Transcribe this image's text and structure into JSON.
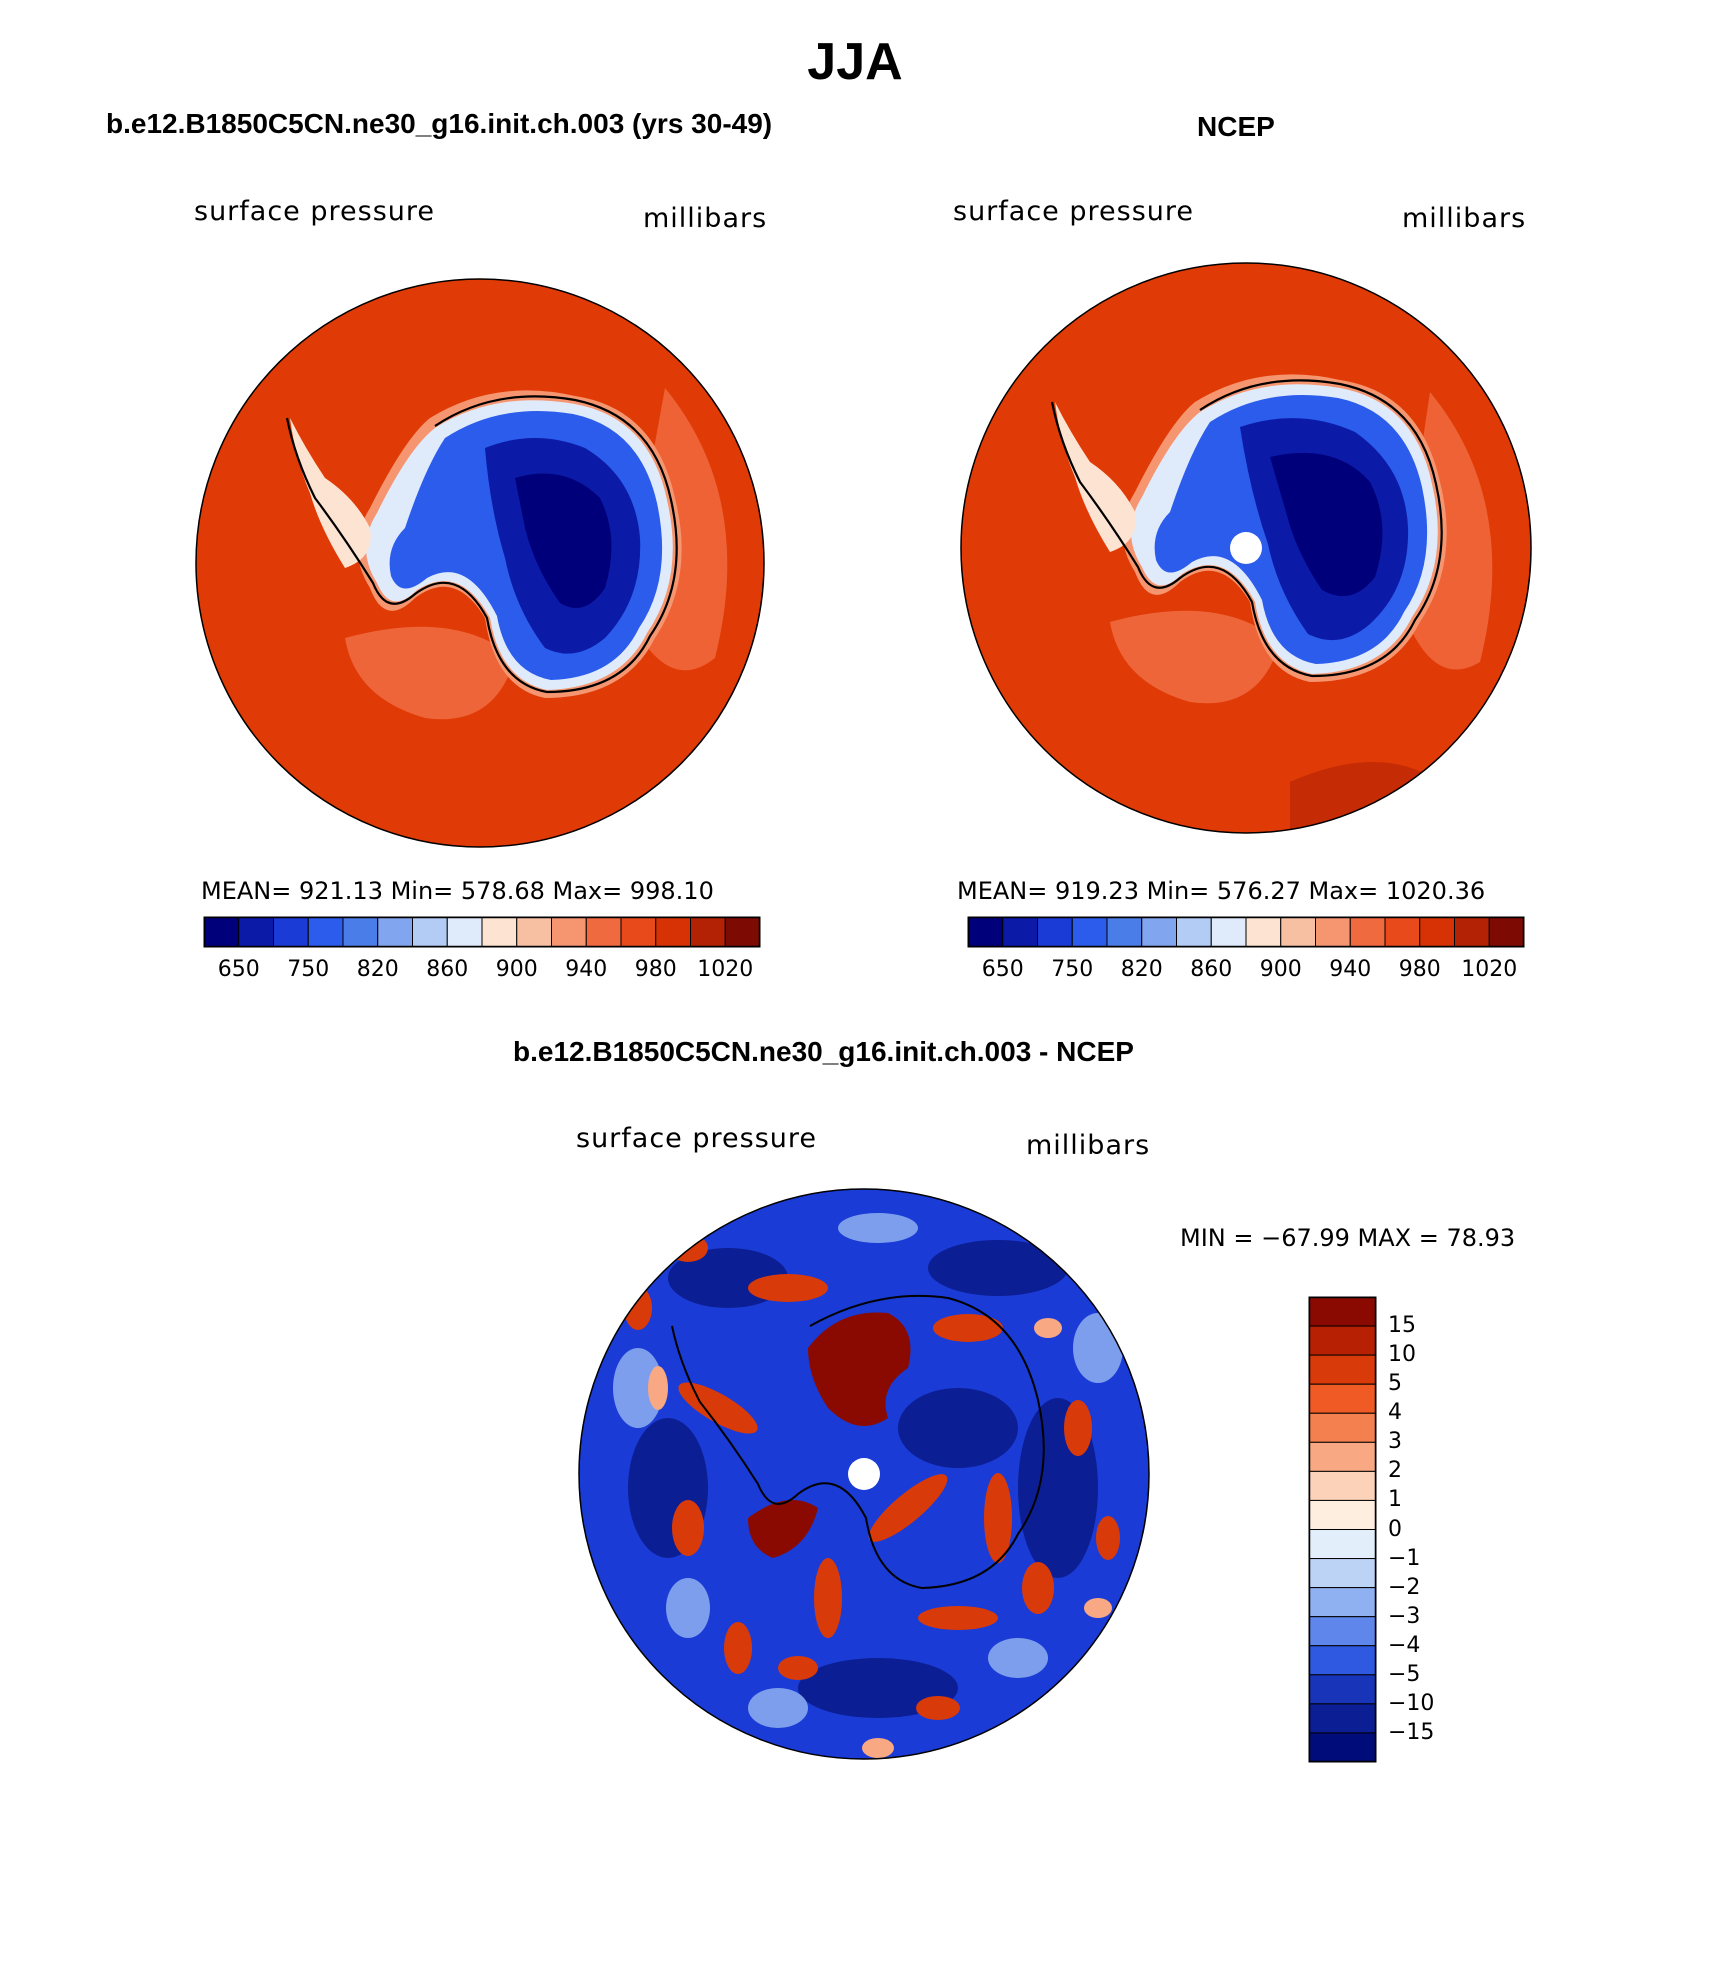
{
  "figure": {
    "title": "JJA",
    "difference_title": "b.e12.B1850C5CN.ne30_g16.init.ch.003 - NCEP"
  },
  "panels": [
    {
      "title": "b.e12.B1850C5CN.ne30_g16.init.ch.003 (yrs 30-49)",
      "variable": "surface pressure",
      "units": "millibars",
      "stats": "MEAN= 921.13   Min= 578.68   Max= 998.10"
    },
    {
      "title": "NCEP",
      "variable": "surface pressure",
      "units": "millibars",
      "stats": "MEAN= 919.23   Min= 576.27   Max= 1020.36"
    }
  ],
  "difference_panel": {
    "variable": "surface pressure",
    "units": "millibars",
    "stats": "MIN = −67.99 MAX =   78.93"
  },
  "colorbar_abs": {
    "labels": [
      "650",
      "750",
      "820",
      "860",
      "900",
      "940",
      "980",
      "1020"
    ],
    "colors": [
      "#00007a",
      "#0c1aa8",
      "#1a3bd6",
      "#2b5ceb",
      "#4a7de8",
      "#82a5ef",
      "#b3ccf5",
      "#dfeafb",
      "#fde4d2",
      "#f8c0a3",
      "#f59670",
      "#f06a40",
      "#e84a1c",
      "#d73206",
      "#b32204",
      "#7d0a03"
    ]
  },
  "colorbar_diff": {
    "labels": [
      "15",
      "10",
      "5",
      "4",
      "3",
      "2",
      "1",
      "0",
      "−1",
      "−2",
      "−3",
      "−4",
      "−5",
      "−10",
      "−15"
    ],
    "colors": [
      "#8a0a02",
      "#b82003",
      "#d93a0a",
      "#ef5a25",
      "#f4804f",
      "#f8a882",
      "#fcd3b8",
      "#fdeee0",
      "#e3eefb",
      "#bcd3f6",
      "#8fb0f1",
      "#5f86ea",
      "#2f59e0",
      "#1835b9",
      "#0c1e93",
      "#000c7a"
    ]
  }
}
